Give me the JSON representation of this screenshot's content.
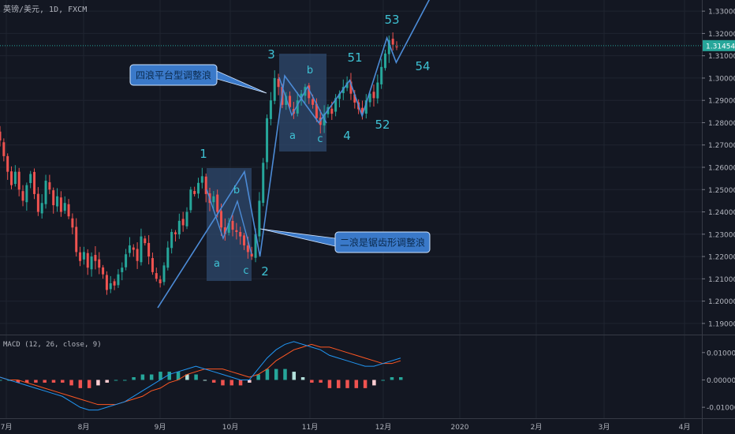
{
  "header": {
    "symbol": "英镑/美元, 1D, FXCM"
  },
  "macd_label": "MACD (12, 26, close, 9)",
  "chart_data": {
    "type": "candlestick",
    "symbol": "英镑/美元",
    "interval": "1D",
    "source": "FXCM",
    "last_price": "1.31454",
    "ylim": [
      1.185,
      1.335
    ],
    "yticks": [
      "1.33000",
      "1.32000",
      "1.31000",
      "1.30000",
      "1.29000",
      "1.28000",
      "1.27000",
      "1.26000",
      "1.25000",
      "1.24000",
      "1.23000",
      "1.22000",
      "1.21000",
      "1.20000",
      "1.19000"
    ],
    "xticks": [
      "7月",
      "8月",
      "9月",
      "10月",
      "11月",
      "12月",
      "2020",
      "2月",
      "3月",
      "4月"
    ],
    "close_path": [
      1.272,
      1.265,
      1.258,
      1.252,
      1.258,
      1.25,
      1.245,
      1.252,
      1.257,
      1.248,
      1.24,
      1.244,
      1.254,
      1.25,
      1.243,
      1.247,
      1.24,
      1.244,
      1.238,
      1.233,
      1.222,
      1.218,
      1.222,
      1.215,
      1.22,
      1.218,
      1.215,
      1.212,
      1.205,
      1.208,
      1.207,
      1.212,
      1.215,
      1.221,
      1.225,
      1.223,
      1.218,
      1.229,
      1.226,
      1.22,
      1.213,
      1.21,
      1.208,
      1.216,
      1.224,
      1.231,
      1.23,
      1.236,
      1.234,
      1.24,
      1.25,
      1.248,
      1.253,
      1.256,
      1.248,
      1.244,
      1.247,
      1.24,
      1.233,
      1.23,
      1.235,
      1.232,
      1.231,
      1.229,
      1.225,
      1.222,
      1.22,
      1.23,
      1.245,
      1.262,
      1.282,
      1.29,
      1.3,
      1.296,
      1.288,
      1.292,
      1.287,
      1.284,
      1.29,
      1.293,
      1.296,
      1.291,
      1.288,
      1.282,
      1.279,
      1.284,
      1.287,
      1.284,
      1.291,
      1.293,
      1.296,
      1.298,
      1.293,
      1.289,
      1.286,
      1.284,
      1.29,
      1.293,
      1.291,
      1.298,
      1.305,
      1.311,
      1.317,
      1.315,
      1.314
    ],
    "wave_path": [
      [
        0.0,
        1.197
      ],
      [
        0.28,
        1.258
      ],
      [
        0.33,
        1.22
      ],
      [
        0.41,
        1.301
      ],
      [
        0.52,
        1.28
      ],
      [
        0.62,
        1.299
      ],
      [
        0.66,
        1.283
      ],
      [
        0.74,
        1.318
      ],
      [
        0.77,
        1.307
      ],
      [
        0.88,
        1.336
      ]
    ],
    "wave_labels": [
      "1",
      "2",
      "3",
      "4",
      "51",
      "52",
      "53",
      "54"
    ],
    "sub_wave_labels": [
      "a",
      "b",
      "c",
      "a",
      "b",
      "c"
    ],
    "callouts": [
      "四浪平台型调整浪",
      "二浪是锯齿形调整浪"
    ],
    "macd": {
      "ylim": [
        -0.014,
        0.016
      ],
      "yticks": [
        "0.01000",
        "0.00000",
        "-0.01000"
      ],
      "macd_line": [
        0.001,
        0.0,
        -0.001,
        -0.002,
        -0.003,
        -0.004,
        -0.005,
        -0.006,
        -0.008,
        -0.01,
        -0.011,
        -0.011,
        -0.01,
        -0.009,
        -0.008,
        -0.006,
        -0.004,
        -0.002,
        0.0,
        0.002,
        0.003,
        0.004,
        0.005,
        0.004,
        0.003,
        0.002,
        0.001,
        0.0,
        0.0,
        0.004,
        0.008,
        0.011,
        0.013,
        0.014,
        0.013,
        0.012,
        0.011,
        0.009,
        0.008,
        0.007,
        0.006,
        0.005,
        0.005,
        0.006,
        0.007,
        0.008
      ],
      "signal_line": [
        0.001,
        0.0,
        0.0,
        -0.001,
        -0.002,
        -0.003,
        -0.004,
        -0.005,
        -0.006,
        -0.007,
        -0.008,
        -0.009,
        -0.009,
        -0.009,
        -0.008,
        -0.007,
        -0.006,
        -0.004,
        -0.003,
        -0.001,
        0.0,
        0.002,
        0.003,
        0.004,
        0.004,
        0.004,
        0.003,
        0.002,
        0.001,
        0.002,
        0.004,
        0.007,
        0.009,
        0.011,
        0.012,
        0.013,
        0.012,
        0.012,
        0.011,
        0.01,
        0.009,
        0.008,
        0.007,
        0.006,
        0.006,
        0.007
      ],
      "histogram": [
        0.0,
        0.0,
        -0.001,
        -0.001,
        -0.001,
        -0.001,
        -0.001,
        -0.001,
        -0.002,
        -0.003,
        -0.003,
        -0.002,
        -0.001,
        0.0,
        0.0,
        0.001,
        0.002,
        0.002,
        0.003,
        0.003,
        0.003,
        0.002,
        0.002,
        0.0,
        -0.001,
        -0.002,
        -0.002,
        -0.002,
        -0.001,
        0.002,
        0.004,
        0.004,
        0.004,
        0.003,
        0.001,
        -0.001,
        -0.001,
        -0.003,
        -0.003,
        -0.003,
        -0.003,
        -0.003,
        -0.002,
        0.0,
        0.001,
        0.001
      ]
    }
  },
  "colors": {
    "background": "#131722",
    "grid": "#1f2430",
    "axis_text": "#b2b5be",
    "up": "#26a69a",
    "down": "#ef5350",
    "wave": "#4c8bd6",
    "wave_label": "#3ec1d3",
    "box_fill": "#2f4a6e",
    "price_line": "#26a69a",
    "macd_line": "#2196f3",
    "signal_line": "#ff5722"
  }
}
